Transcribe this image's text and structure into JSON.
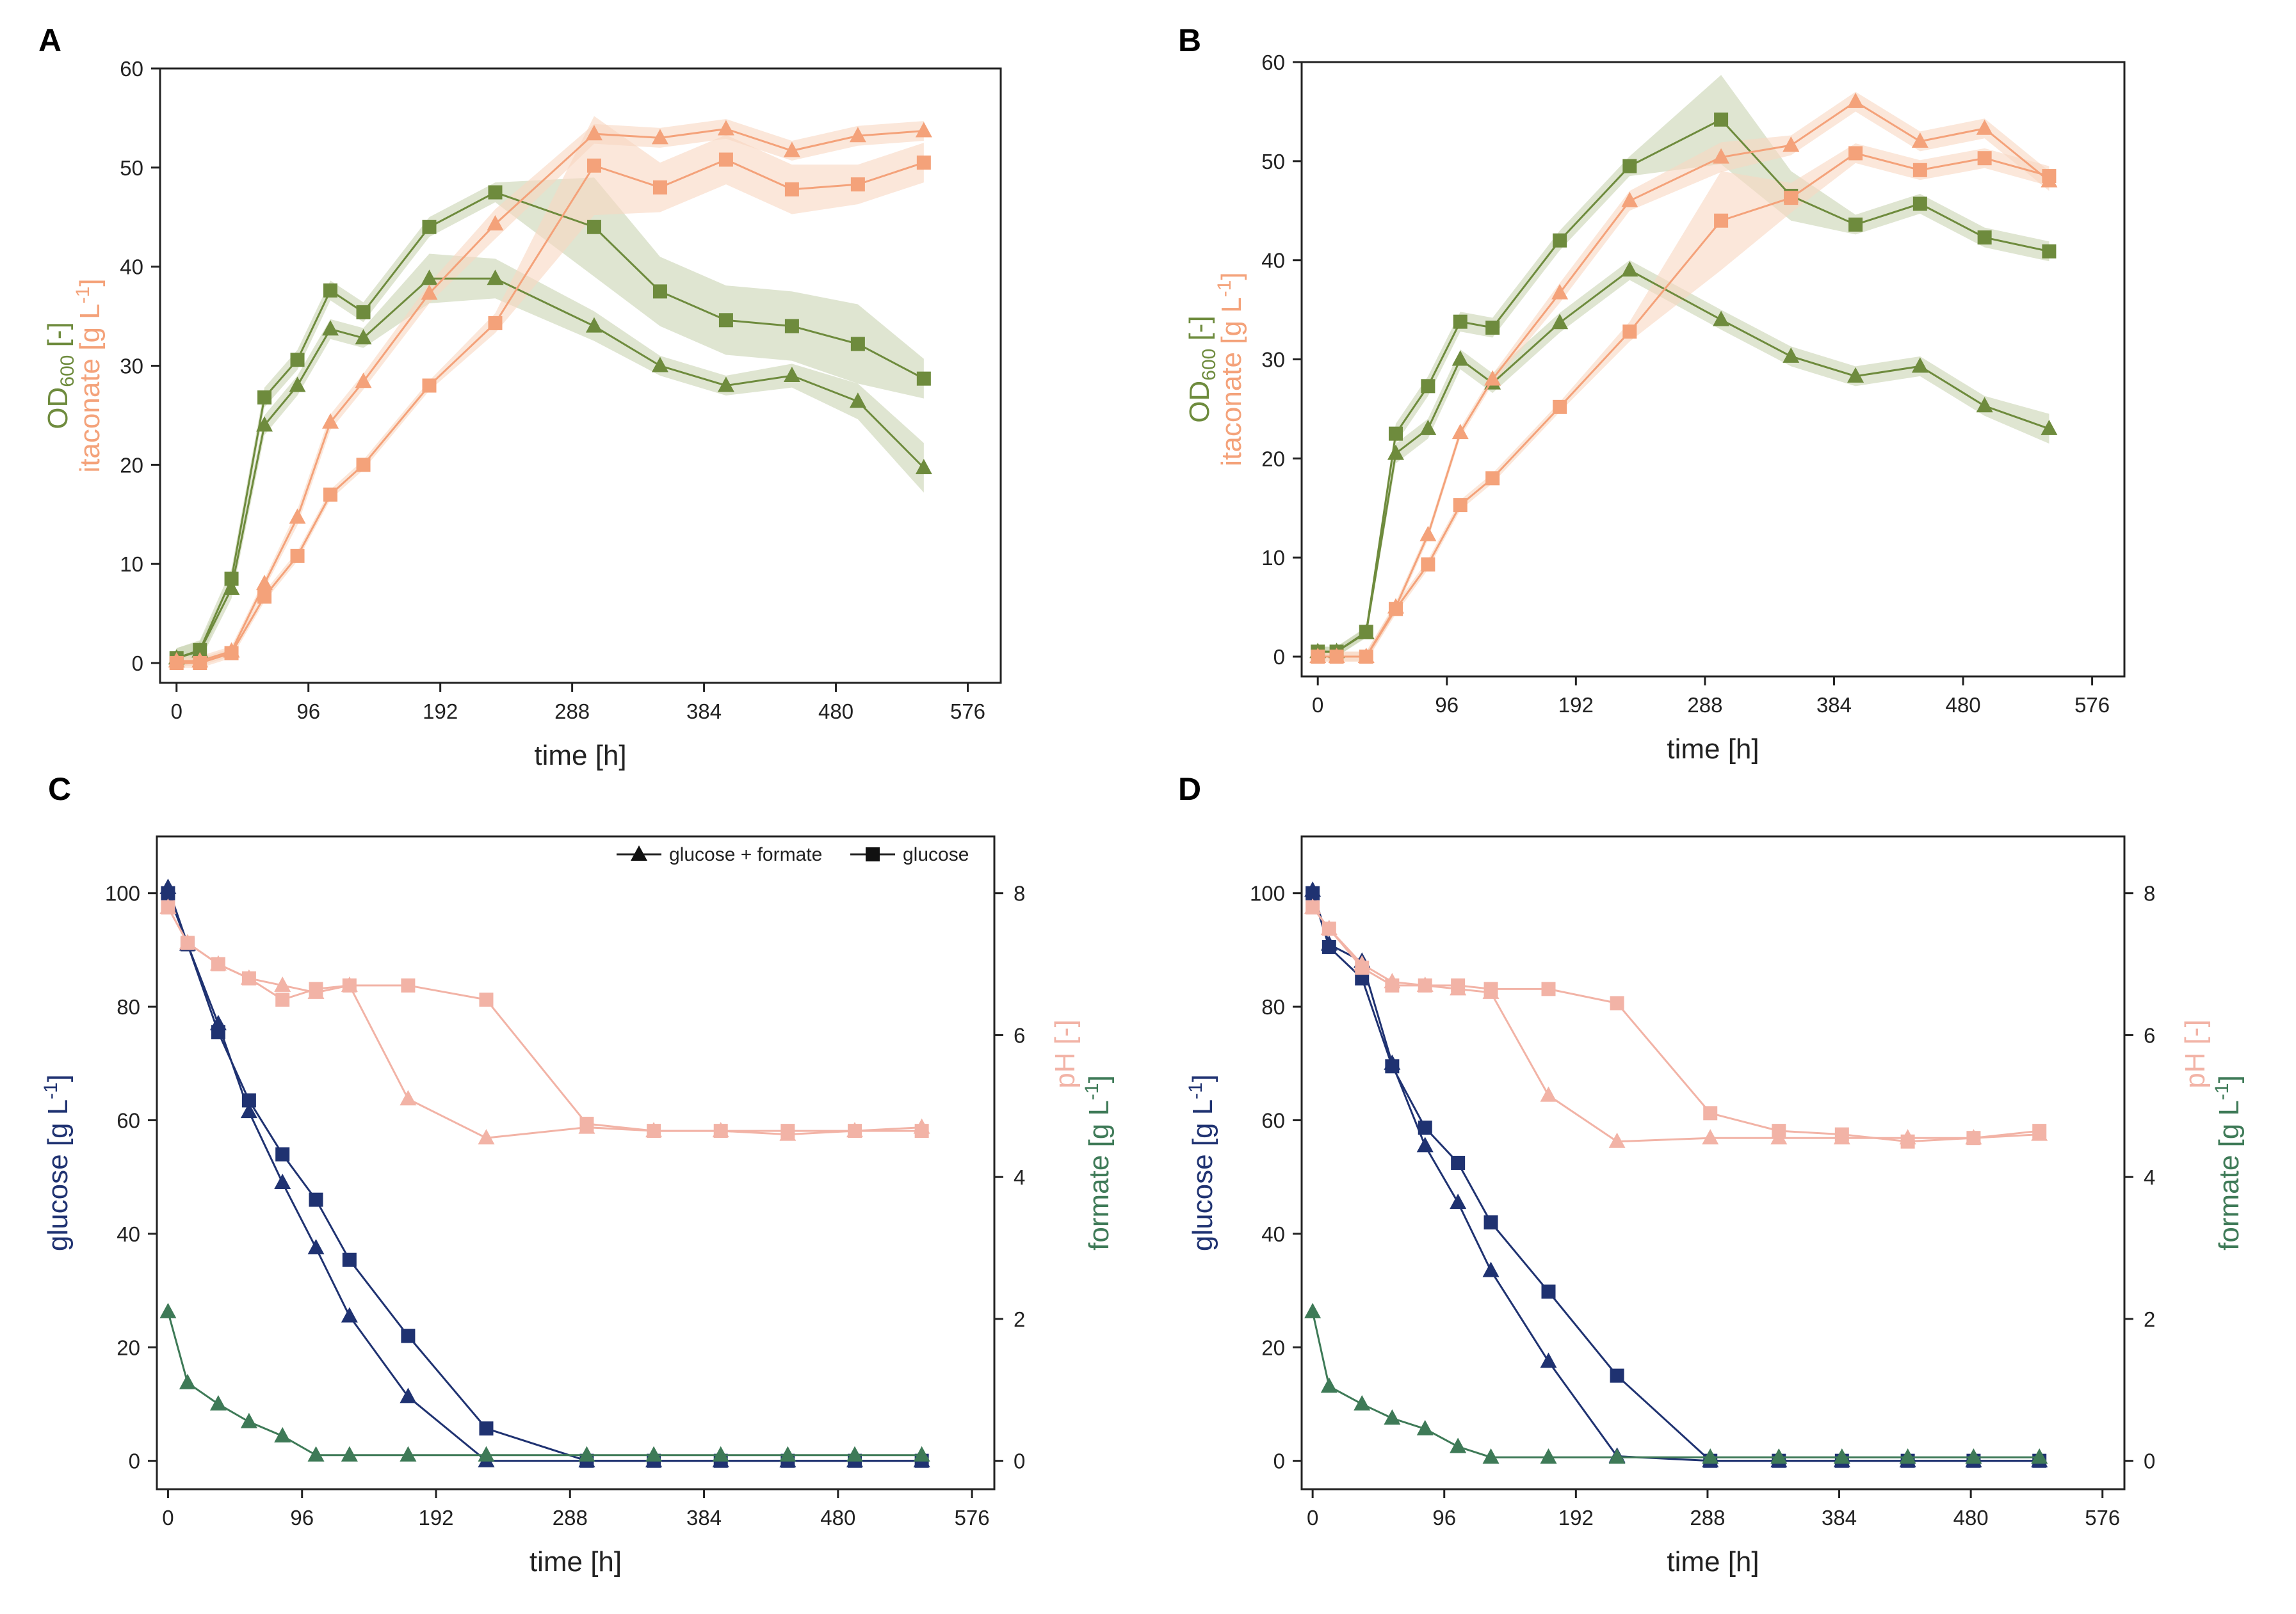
{
  "colors": {
    "orange": "#F4A27A",
    "olive": "#6E8B3D",
    "olive_band": "#C9D3B3",
    "orange_band": "#F8D7C2",
    "navy": "#1F3271",
    "pink": "#F2B3A6",
    "green": "#3E7A57",
    "axis": "#222222"
  },
  "chart_data": [
    {
      "panel": "A",
      "type": "line",
      "title": "",
      "xlabel": "time [h]",
      "ylabel_parts": [
        "OD",
        "600",
        " [-]"
      ],
      "ylabel2": "itaconate [g L",
      "ylabel2_sup": "-1",
      "ylabel2_end": "]",
      "xlim": [
        -12,
        600
      ],
      "ylim": [
        -2,
        60
      ],
      "xticks": [
        0,
        96,
        192,
        288,
        384,
        480,
        576
      ],
      "yticks": [
        0,
        10,
        20,
        30,
        40,
        50,
        60
      ],
      "series": [
        {
          "name": "OD600 glucose + formate",
          "color": "olive",
          "marker": "triangle",
          "x": [
            0,
            17,
            40,
            64,
            88,
            112,
            136,
            184,
            232,
            304,
            352,
            400,
            448,
            496,
            544
          ],
          "y": [
            0.5,
            1.2,
            7.5,
            24,
            28,
            33.7,
            32.8,
            38.8,
            38.8,
            34,
            30,
            28,
            29,
            26.4,
            19.7
          ],
          "band": [
            1,
            1,
            1,
            1,
            1,
            1,
            1,
            2.5,
            2,
            1.5,
            1,
            1,
            1.2,
            1.8,
            2.5
          ]
        },
        {
          "name": "OD600 glucose",
          "color": "olive",
          "marker": "square",
          "x": [
            0,
            17,
            40,
            64,
            88,
            112,
            136,
            184,
            232,
            304,
            352,
            400,
            448,
            496,
            544
          ],
          "y": [
            0.5,
            1.3,
            8.5,
            26.8,
            30.6,
            37.6,
            35.4,
            44,
            47.5,
            44,
            37.5,
            34.6,
            34,
            32.2,
            28.7
          ],
          "band": [
            1,
            1,
            1,
            1,
            1,
            1,
            1,
            1,
            1,
            5,
            3.5,
            3.5,
            3.5,
            4,
            2
          ]
        },
        {
          "name": "itaconate glucose + formate",
          "color": "orange",
          "marker": "triangle",
          "x": [
            0,
            17,
            40,
            64,
            88,
            112,
            136,
            184,
            232,
            304,
            352,
            400,
            448,
            496,
            544
          ],
          "y": [
            0.2,
            0.2,
            1.2,
            8,
            14.7,
            24.3,
            28.4,
            37.3,
            44.3,
            53.4,
            53,
            53.9,
            51.7,
            53.2,
            53.7
          ],
          "band": [
            0.5,
            0.5,
            0.5,
            0.5,
            0.8,
            0.8,
            0.8,
            1,
            1.5,
            1,
            1,
            1,
            1,
            1,
            1
          ]
        },
        {
          "name": "itaconate glucose",
          "color": "orange",
          "marker": "square",
          "x": [
            0,
            17,
            40,
            64,
            88,
            112,
            136,
            184,
            232,
            304,
            352,
            400,
            448,
            496,
            544
          ],
          "y": [
            0,
            0,
            1,
            6.7,
            10.8,
            17,
            20,
            28,
            34.3,
            50.2,
            48,
            50.8,
            47.8,
            48.3,
            50.5
          ],
          "band": [
            0.5,
            0.5,
            0.5,
            0.5,
            0.5,
            0.5,
            0.5,
            0.5,
            1,
            5,
            2.5,
            2.5,
            2.5,
            2,
            2
          ]
        }
      ]
    },
    {
      "panel": "B",
      "type": "line",
      "title": "",
      "xlabel": "time [h]",
      "ylabel_parts": [
        "OD",
        "600",
        " [-]"
      ],
      "ylabel2": "itaconate [g L",
      "ylabel2_sup": "-1",
      "ylabel2_end": "]",
      "xlim": [
        -12,
        600
      ],
      "ylim": [
        -2,
        60
      ],
      "xticks": [
        0,
        96,
        192,
        288,
        384,
        480,
        576
      ],
      "yticks": [
        0,
        10,
        20,
        30,
        40,
        50,
        60
      ],
      "series": [
        {
          "name": "OD600 glucose + formate",
          "color": "olive",
          "marker": "triangle",
          "x": [
            0,
            14,
            36,
            58,
            82,
            106,
            130,
            180,
            232,
            300,
            352,
            400,
            448,
            496,
            544
          ],
          "y": [
            0.5,
            0.5,
            2.4,
            20.5,
            23,
            30,
            27.6,
            33.7,
            39,
            34,
            30.3,
            28.3,
            29.3,
            25.3,
            23
          ],
          "band": [
            0.5,
            0.5,
            0.5,
            1,
            1,
            1,
            1,
            1,
            1,
            1,
            1,
            1,
            1,
            1,
            1.5
          ]
        },
        {
          "name": "OD600 glucose",
          "color": "olive",
          "marker": "square",
          "x": [
            0,
            14,
            36,
            58,
            82,
            106,
            130,
            180,
            232,
            300,
            352,
            400,
            448,
            496,
            544
          ],
          "y": [
            0.5,
            0.5,
            2.5,
            22.5,
            27.3,
            33.8,
            33.2,
            42,
            49.5,
            54.2,
            46.5,
            43.6,
            45.7,
            42.3,
            40.9
          ],
          "band": [
            0.5,
            0.5,
            0.5,
            1,
            1,
            1,
            1,
            1,
            1,
            4.5,
            2.5,
            1,
            1,
            1,
            1
          ]
        },
        {
          "name": "itaconate glucose + formate",
          "color": "orange",
          "marker": "triangle",
          "x": [
            0,
            14,
            36,
            58,
            82,
            106,
            130,
            180,
            232,
            300,
            352,
            400,
            448,
            496,
            544
          ],
          "y": [
            0,
            0,
            0,
            5,
            12.3,
            22.6,
            28,
            36.7,
            46,
            50.4,
            51.6,
            56,
            52,
            53.3,
            48
          ],
          "band": [
            0.5,
            0.5,
            0.5,
            0.5,
            0.5,
            0.5,
            0.5,
            1,
            1,
            1.5,
            1,
            1,
            1,
            1,
            1
          ]
        },
        {
          "name": "itaconate glucose",
          "color": "orange",
          "marker": "square",
          "x": [
            0,
            14,
            36,
            58,
            82,
            106,
            130,
            180,
            232,
            300,
            352,
            400,
            448,
            496,
            544
          ],
          "y": [
            0,
            0,
            0,
            4.8,
            9.3,
            15.3,
            18,
            25.2,
            32.8,
            44,
            46.3,
            50.8,
            49.1,
            50.3,
            48.5
          ],
          "band": [
            0.5,
            0.5,
            0.5,
            0.5,
            0.5,
            0.5,
            0.5,
            0.5,
            1,
            5,
            1.5,
            1,
            1,
            1,
            1
          ]
        }
      ]
    },
    {
      "panel": "C",
      "type": "line",
      "title": "",
      "xlabel": "time [h]",
      "ylabel": "glucose [g L",
      "ylabel_sup": "-1",
      "ylabel_end": "]",
      "ylabel_right1": "pH [-]",
      "ylabel_right2": "formate [g L",
      "ylabel_right2_sup": "-1",
      "ylabel_right2_end": "]",
      "xlim": [
        -8,
        592
      ],
      "ylim": [
        -5,
        110
      ],
      "y2lim": [
        -0.4,
        8.8
      ],
      "xticks": [
        0,
        96,
        192,
        288,
        384,
        480,
        576
      ],
      "yticks": [
        0,
        20,
        40,
        60,
        80,
        100
      ],
      "y2ticks": [
        0,
        2,
        4,
        6,
        8
      ],
      "legend": {
        "position": "top-right",
        "entries": [
          "glucose + formate",
          "glucose"
        ]
      },
      "series": [
        {
          "name": "glucose (glucose + formate)",
          "axis": "left",
          "color": "navy",
          "marker": "triangle",
          "x": [
            0,
            14,
            36,
            58,
            82,
            106,
            130,
            172,
            228,
            300,
            348,
            396,
            444,
            492,
            540
          ],
          "y": [
            101,
            91,
            77,
            61.5,
            49,
            37.5,
            25.5,
            11.3,
            0,
            0,
            0,
            0,
            0,
            0,
            0
          ]
        },
        {
          "name": "glucose (glucose)",
          "axis": "left",
          "color": "navy",
          "marker": "square",
          "x": [
            0,
            14,
            36,
            58,
            82,
            106,
            130,
            172,
            228,
            300,
            348,
            396,
            444,
            492,
            540
          ],
          "y": [
            100,
            91,
            75.5,
            63.5,
            54,
            46,
            35.4,
            22,
            5.7,
            0,
            0,
            0,
            0,
            0,
            0
          ]
        },
        {
          "name": "pH (glucose + formate)",
          "axis": "right",
          "color": "pink",
          "marker": "triangle",
          "x": [
            0,
            14,
            36,
            58,
            82,
            106,
            130,
            172,
            228,
            300,
            348,
            396,
            444,
            492,
            540
          ],
          "y": [
            7.8,
            7.3,
            7.0,
            6.8,
            6.7,
            6.6,
            6.7,
            5.1,
            4.55,
            4.7,
            4.65,
            4.65,
            4.6,
            4.65,
            4.7
          ]
        },
        {
          "name": "pH (glucose)",
          "axis": "right",
          "color": "pink",
          "marker": "square",
          "x": [
            0,
            14,
            36,
            58,
            82,
            106,
            130,
            172,
            228,
            300,
            348,
            396,
            444,
            492,
            540
          ],
          "y": [
            7.8,
            7.3,
            7.0,
            6.8,
            6.5,
            6.65,
            6.7,
            6.7,
            6.5,
            4.75,
            4.65,
            4.65,
            4.65,
            4.65,
            4.65
          ]
        },
        {
          "name": "formate (glucose + formate)",
          "axis": "right",
          "color": "green",
          "marker": "triangle",
          "x": [
            0,
            14,
            36,
            58,
            82,
            106,
            130,
            172,
            228,
            300,
            348,
            396,
            444,
            492,
            540
          ],
          "y": [
            2.1,
            1.1,
            0.8,
            0.55,
            0.35,
            0.08,
            0.08,
            0.08,
            0.08,
            0.08,
            0.08,
            0.08,
            0.08,
            0.08,
            0.08
          ]
        }
      ]
    },
    {
      "panel": "D",
      "type": "line",
      "title": "",
      "xlabel": "time [h]",
      "ylabel": "glucose [g L",
      "ylabel_sup": "-1",
      "ylabel_end": "]",
      "ylabel_right1": "pH [-]",
      "ylabel_right2": "formate [g L",
      "ylabel_right2_sup": "-1",
      "ylabel_right2_end": "]",
      "xlim": [
        -8,
        592
      ],
      "ylim": [
        -5,
        110
      ],
      "y2lim": [
        -0.4,
        8.8
      ],
      "xticks": [
        0,
        96,
        192,
        288,
        384,
        480,
        576
      ],
      "yticks": [
        0,
        20,
        40,
        60,
        80,
        100
      ],
      "y2ticks": [
        0,
        2,
        4,
        6,
        8
      ],
      "series": [
        {
          "name": "glucose (glucose + formate)",
          "axis": "left",
          "color": "navy",
          "marker": "triangle",
          "x": [
            0,
            12,
            36,
            58,
            82,
            106,
            130,
            172,
            222,
            290,
            340,
            386,
            434,
            482,
            530
          ],
          "y": [
            100.5,
            91,
            88,
            70,
            55.5,
            45.5,
            33.5,
            17.5,
            0.8,
            0,
            0,
            0,
            0,
            0,
            0
          ]
        },
        {
          "name": "glucose (glucose)",
          "axis": "left",
          "color": "navy",
          "marker": "square",
          "x": [
            0,
            12,
            36,
            58,
            82,
            106,
            130,
            172,
            222,
            290,
            340,
            386,
            434,
            482,
            530
          ],
          "y": [
            100,
            90.5,
            85,
            69.5,
            58.7,
            52.5,
            42,
            29.8,
            15,
            0,
            0,
            0,
            0,
            0,
            0
          ]
        },
        {
          "name": "pH (glucose + formate)",
          "axis": "right",
          "color": "pink",
          "marker": "triangle",
          "x": [
            0,
            12,
            36,
            58,
            82,
            106,
            130,
            172,
            222,
            290,
            340,
            386,
            434,
            482,
            530
          ],
          "y": [
            7.8,
            7.5,
            7.0,
            6.75,
            6.7,
            6.65,
            6.6,
            5.15,
            4.5,
            4.55,
            4.55,
            4.55,
            4.55,
            4.55,
            4.6
          ]
        },
        {
          "name": "pH (glucose)",
          "axis": "right",
          "color": "pink",
          "marker": "square",
          "x": [
            0,
            12,
            36,
            58,
            82,
            106,
            130,
            172,
            222,
            290,
            340,
            386,
            434,
            482,
            530
          ],
          "y": [
            7.8,
            7.5,
            6.95,
            6.7,
            6.7,
            6.7,
            6.65,
            6.65,
            6.45,
            4.9,
            4.65,
            4.6,
            4.5,
            4.55,
            4.65
          ]
        },
        {
          "name": "formate (glucose + formate)",
          "axis": "right",
          "color": "green",
          "marker": "triangle",
          "x": [
            0,
            12,
            36,
            58,
            82,
            106,
            130,
            172,
            222,
            290,
            340,
            386,
            434,
            482,
            530
          ],
          "y": [
            2.1,
            1.05,
            0.8,
            0.6,
            0.45,
            0.2,
            0.05,
            0.05,
            0.05,
            0.05,
            0.05,
            0.05,
            0.05,
            0.05,
            0.05
          ]
        }
      ]
    }
  ]
}
